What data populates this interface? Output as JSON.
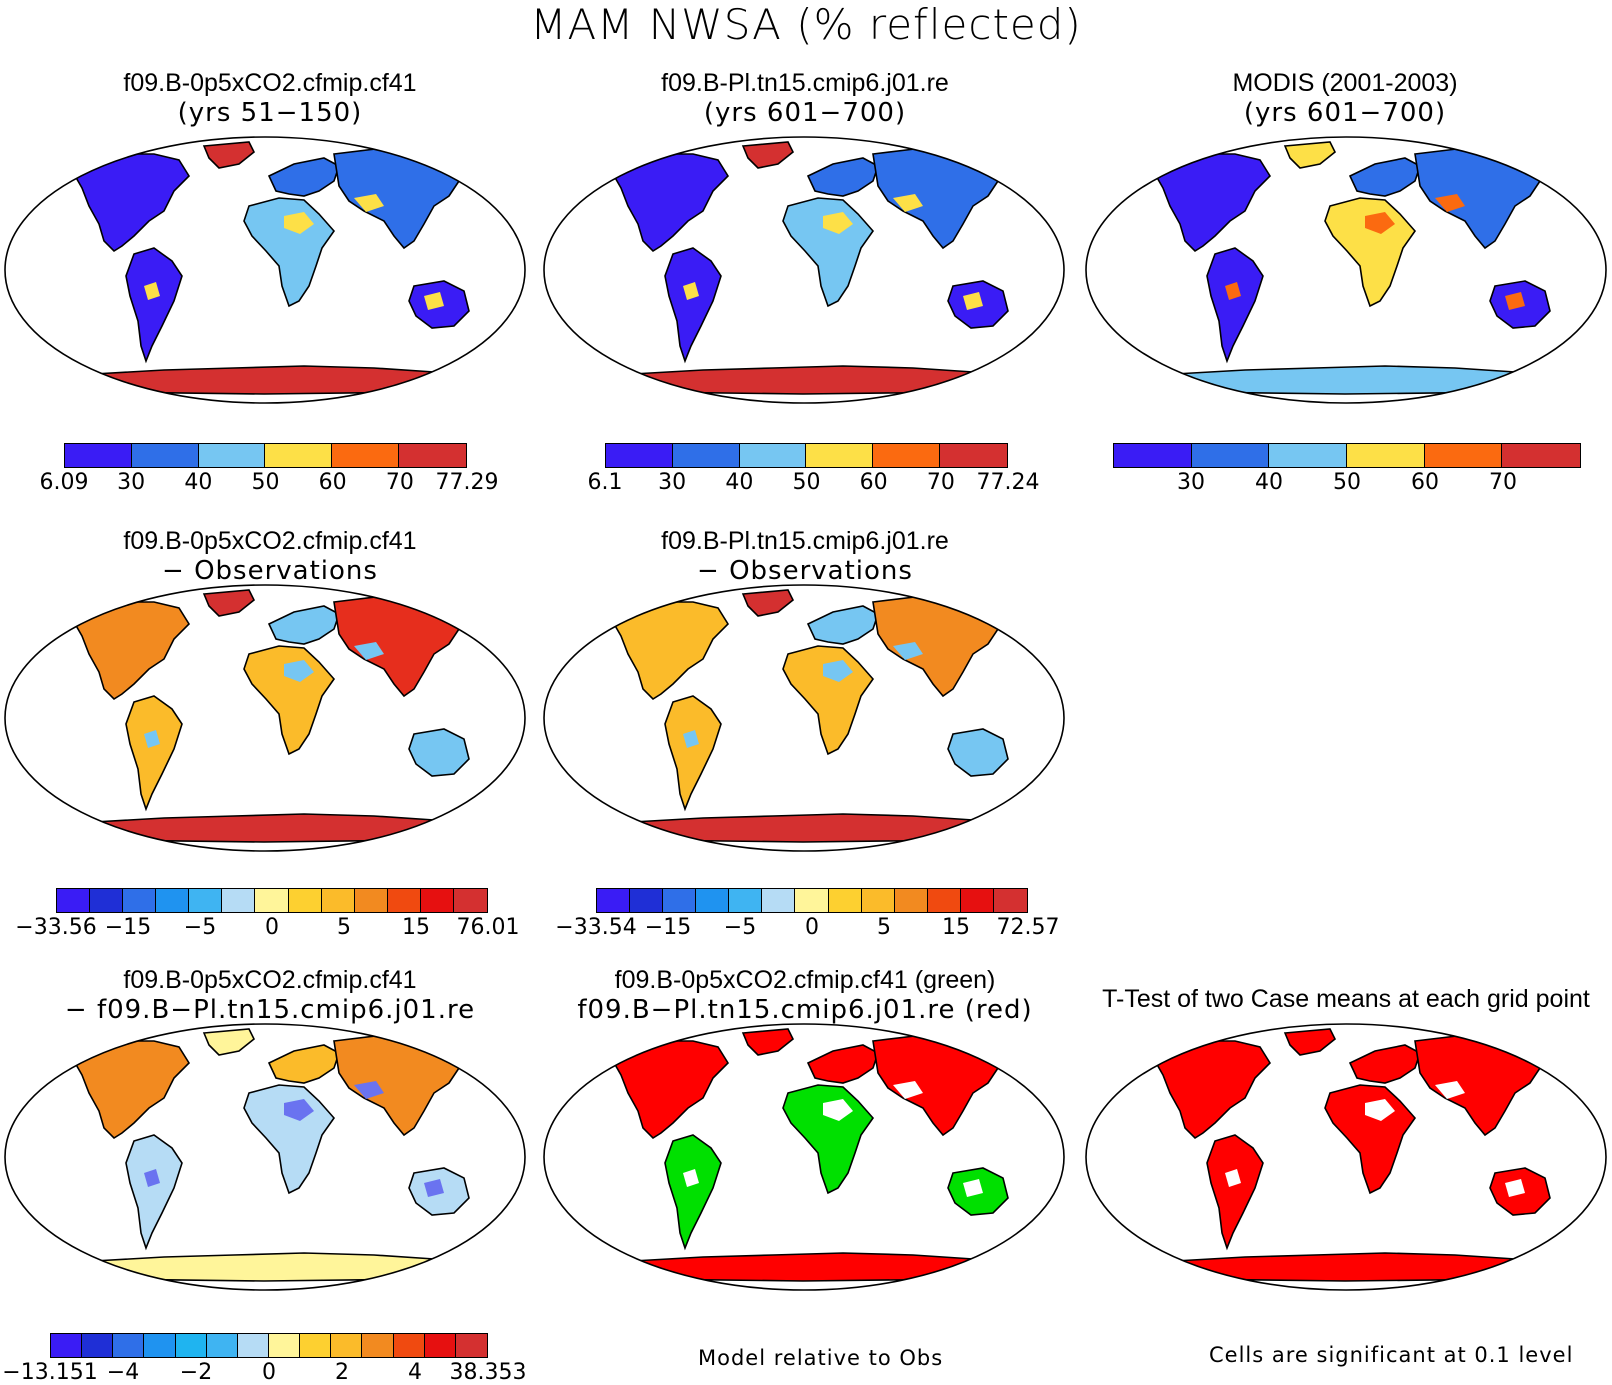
{
  "title": "MAM NWSA (% reflected)",
  "panels": [
    {
      "line1": "f09.B-0p5xCO2.cfmip.cf41",
      "line2": "(yrs 51−150)",
      "ocean": "#ffffff",
      "land": [
        "#3a1cf5",
        "#2f6fe8",
        "#76c6f2",
        "#fde047",
        "#fb6a10",
        "#d43030"
      ],
      "fill": {
        "na": 0,
        "sa": 0,
        "eu": 1,
        "af": 2,
        "as": 1,
        "au": 0,
        "gl": 5,
        "an": 5,
        "spot": 3
      }
    },
    {
      "line1": "f09.B-Pl.tn15.cmip6.j01.re",
      "line2": "(yrs 601−700)",
      "ocean": "#ffffff",
      "land": [
        "#3a1cf5",
        "#2f6fe8",
        "#76c6f2",
        "#fde047",
        "#fb6a10",
        "#d43030"
      ],
      "fill": {
        "na": 0,
        "sa": 0,
        "eu": 1,
        "af": 2,
        "as": 1,
        "au": 0,
        "gl": 5,
        "an": 5,
        "spot": 3
      }
    },
    {
      "line1": "MODIS (2001-2003)",
      "line2": "(yrs 601−700)",
      "ocean": "#ffffff",
      "land": [
        "#3a1cf5",
        "#2f6fe8",
        "#76c6f2",
        "#fde047",
        "#fb6a10",
        "#d43030"
      ],
      "fill": {
        "na": 0,
        "sa": 0,
        "eu": 1,
        "af": 3,
        "as": 1,
        "au": 0,
        "gl": 3,
        "an": 2,
        "spot": 4
      }
    },
    {
      "line1": "f09.B-0p5xCO2.cfmip.cf41",
      "line2": "− Observations",
      "ocean": "#ffffff",
      "land": [
        "#76c6f2",
        "#fbbb2a",
        "#f28a20",
        "#e62e1d",
        "#d43030",
        "#fde68a"
      ],
      "fill": {
        "na": 2,
        "sa": 1,
        "eu": 0,
        "af": 1,
        "as": 3,
        "au": 0,
        "gl": 4,
        "an": 4,
        "spot": 0
      }
    },
    {
      "line1": "f09.B-Pl.tn15.cmip6.j01.re",
      "line2": "− Observations",
      "ocean": "#ffffff",
      "land": [
        "#76c6f2",
        "#fbbb2a",
        "#f28a20",
        "#e62e1d",
        "#d43030",
        "#fde68a"
      ],
      "fill": {
        "na": 1,
        "sa": 1,
        "eu": 0,
        "af": 1,
        "as": 2,
        "au": 0,
        "gl": 4,
        "an": 4,
        "spot": 0
      }
    },
    {
      "line1": "f09.B-0p5xCO2.cfmip.cf41",
      "line2": "− f09.B−Pl.tn15.cmip6.j01.re",
      "ocean": "#ffffff",
      "land": [
        "#b6dcf5",
        "#fff59a",
        "#fbbb2a",
        "#f28a20",
        "#e62e1d",
        "#6a73f0"
      ],
      "fill": {
        "na": 3,
        "sa": 0,
        "eu": 2,
        "af": 0,
        "as": 3,
        "au": 0,
        "gl": 1,
        "an": 1,
        "spot": 5
      }
    },
    {
      "line1": "f09.B-0p5xCO2.cfmip.cf41 (green)",
      "line2": "f09.B−Pl.tn15.cmip6.j01.re (red)",
      "ocean": "#ffffff",
      "land": [
        "#00e000",
        "#ff0000",
        "#ffffff",
        "#ff0000",
        "#ff0000",
        "#ff0000"
      ],
      "fill": {
        "na": 1,
        "sa": 0,
        "eu": 1,
        "af": 0,
        "as": 1,
        "au": 0,
        "gl": 1,
        "an": 1,
        "spot": 2
      }
    },
    {
      "line1": "T-Test of two Case means at each grid point",
      "line2": "",
      "ocean": "#ffffff",
      "land": [
        "#ff0000",
        "#ff0000",
        "#ffffff",
        "#ff0000",
        "#ff0000",
        "#ff0000"
      ],
      "fill": {
        "na": 0,
        "sa": 0,
        "eu": 0,
        "af": 0,
        "as": 0,
        "au": 0,
        "gl": 0,
        "an": 0,
        "spot": 2
      }
    }
  ],
  "colorbars": [
    {
      "colors": [
        "#3a1cf5",
        "#2f6fe8",
        "#76c6f2",
        "#fde047",
        "#fb6a10",
        "#d43030"
      ],
      "labels": [
        "6.09",
        "30",
        "40",
        "50",
        "60",
        "70",
        "77.29"
      ],
      "label_at": "edges"
    },
    {
      "colors": [
        "#3a1cf5",
        "#2f6fe8",
        "#76c6f2",
        "#fde047",
        "#fb6a10",
        "#d43030"
      ],
      "labels": [
        "6.1",
        "30",
        "40",
        "50",
        "60",
        "70",
        "77.24"
      ],
      "label_at": "edges"
    },
    {
      "colors": [
        "#3a1cf5",
        "#2f6fe8",
        "#76c6f2",
        "#fde047",
        "#fb6a10",
        "#d43030"
      ],
      "labels": [
        "30",
        "40",
        "50",
        "60",
        "70"
      ],
      "label_at": "interior"
    },
    {
      "colors": [
        "#3a1cf5",
        "#1f2fd6",
        "#2f6fe8",
        "#1f93f0",
        "#3fb4f2",
        "#b6dcf5",
        "#fff59a",
        "#fdd030",
        "#fbbb2a",
        "#f28a20",
        "#f04a10",
        "#e61010",
        "#d43030"
      ],
      "labels": [
        "−33.56",
        "−15",
        "−5",
        "0",
        "5",
        "15",
        "76.01"
      ],
      "label_at": "every_other"
    },
    {
      "colors": [
        "#3a1cf5",
        "#1f2fd6",
        "#2f6fe8",
        "#1f93f0",
        "#3fb4f2",
        "#b6dcf5",
        "#fff59a",
        "#fdd030",
        "#fbbb2a",
        "#f28a20",
        "#f04a10",
        "#e61010",
        "#d43030"
      ],
      "labels": [
        "−33.54",
        "−15",
        "−5",
        "0",
        "5",
        "15",
        "72.57"
      ],
      "label_at": "every_other"
    },
    {
      "colors": [
        "#3a1cf5",
        "#1f2fd6",
        "#2f6fe8",
        "#1f93f0",
        "#1fb4f0",
        "#3fb4f2",
        "#b6dcf5",
        "#fff59a",
        "#fdd030",
        "#fbbb2a",
        "#f28a20",
        "#f04a10",
        "#e61010",
        "#d43030"
      ],
      "labels": [
        "−13.151",
        "−4",
        "−2",
        "0",
        "2",
        "4",
        "38.353"
      ],
      "label_at": "every_other"
    }
  ],
  "footnotes": {
    "middle": "Model relative to Obs",
    "right": "Cells are significant at 0.1 level"
  }
}
